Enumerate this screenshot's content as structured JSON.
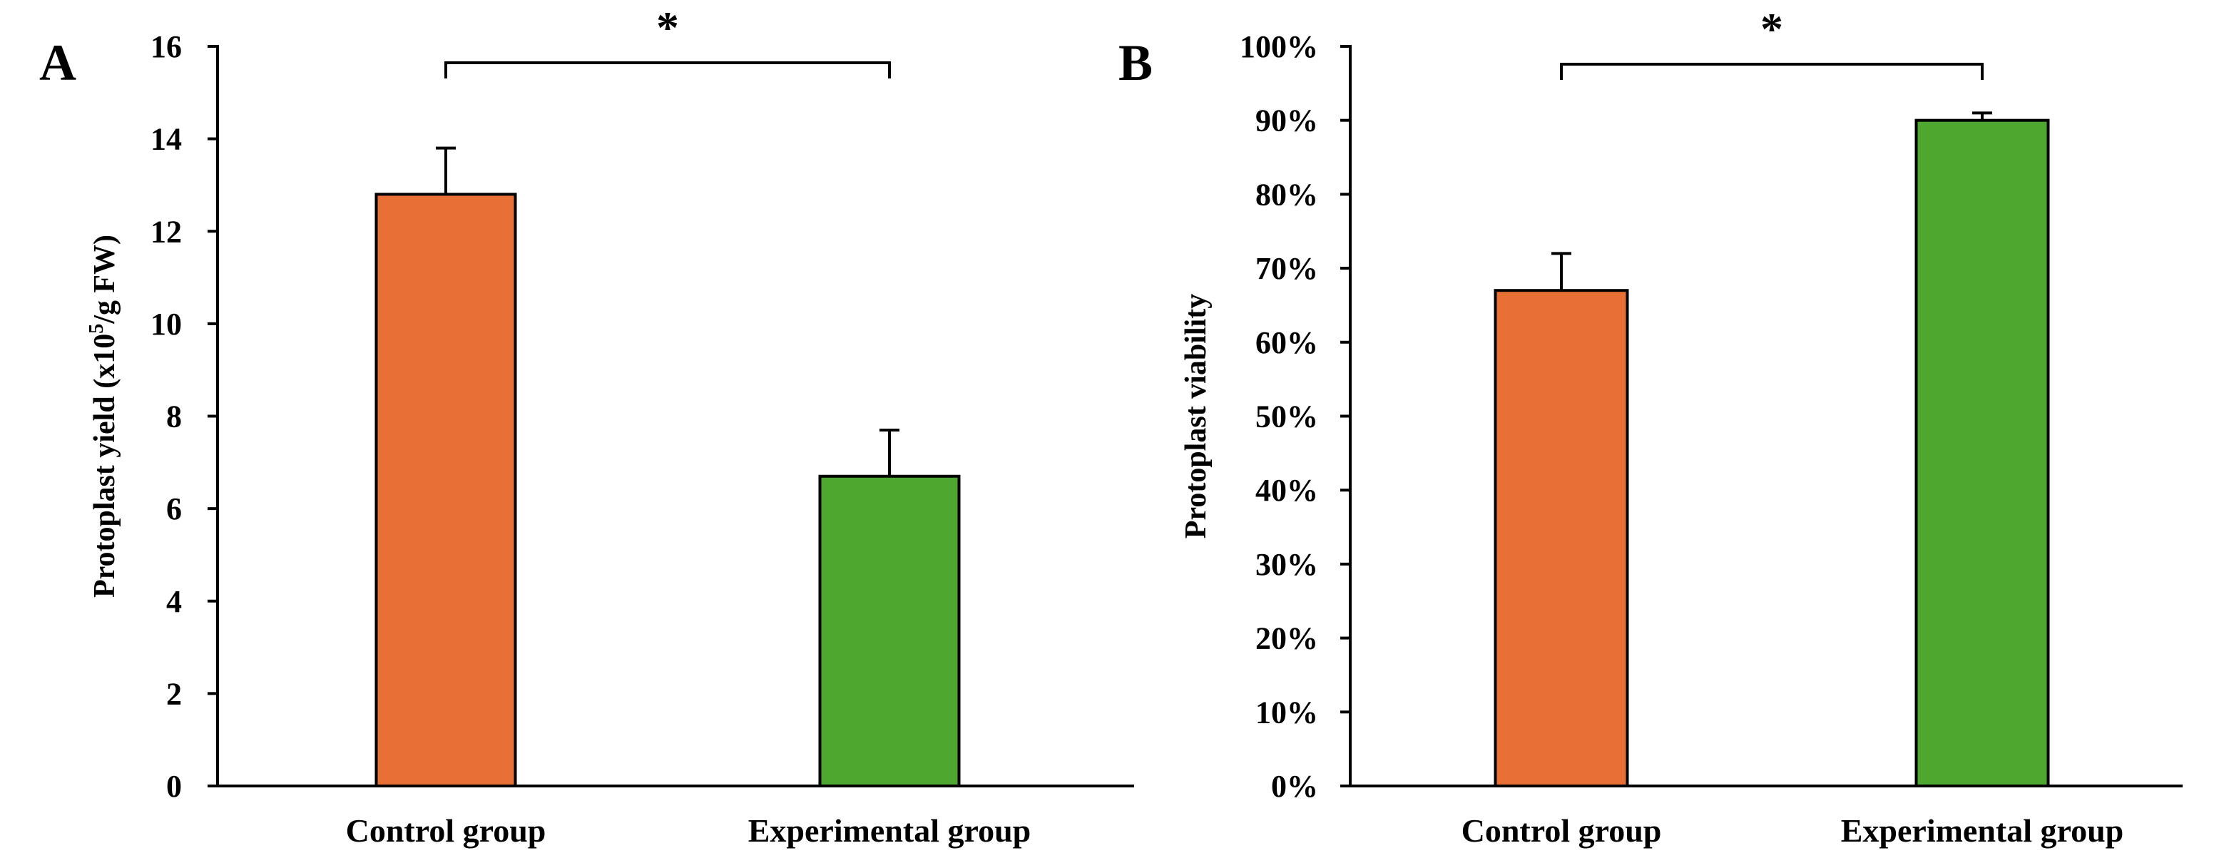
{
  "chart_data": [
    {
      "type": "bar",
      "panel": "A",
      "categories": [
        "Control group",
        "Experimental group"
      ],
      "values": [
        12.8,
        6.7
      ],
      "errors": [
        1.0,
        1.0
      ],
      "colors": [
        "#E87035",
        "#4EA72E"
      ],
      "ylabel": "Protoplast  yield (x10",
      "ylabel_sup": "5",
      "ylabel_tail": "/g FW)",
      "ylim": [
        0,
        16
      ],
      "yticks": [
        0,
        2,
        4,
        6,
        8,
        10,
        12,
        14,
        16
      ],
      "ytick_labels": [
        "0",
        "2",
        "4",
        "6",
        "8",
        "10",
        "12",
        "14",
        "16"
      ],
      "significance": "*",
      "grid": false
    },
    {
      "type": "bar",
      "panel": "B",
      "categories": [
        "Control group",
        "Experimental group"
      ],
      "values": [
        0.67,
        0.9
      ],
      "errors": [
        0.05,
        0.01
      ],
      "colors": [
        "#E87035",
        "#4EA72E"
      ],
      "ylabel": "Protoplast viability",
      "ylim": [
        0,
        1
      ],
      "yticks": [
        0,
        0.1,
        0.2,
        0.3,
        0.4,
        0.5,
        0.6,
        0.7,
        0.8,
        0.9,
        1.0
      ],
      "ytick_labels": [
        "0%",
        "10%",
        "20%",
        "30%",
        "40%",
        "50%",
        "60%",
        "70%",
        "80%",
        "90%",
        "100%"
      ],
      "significance": "*",
      "grid": false
    }
  ]
}
